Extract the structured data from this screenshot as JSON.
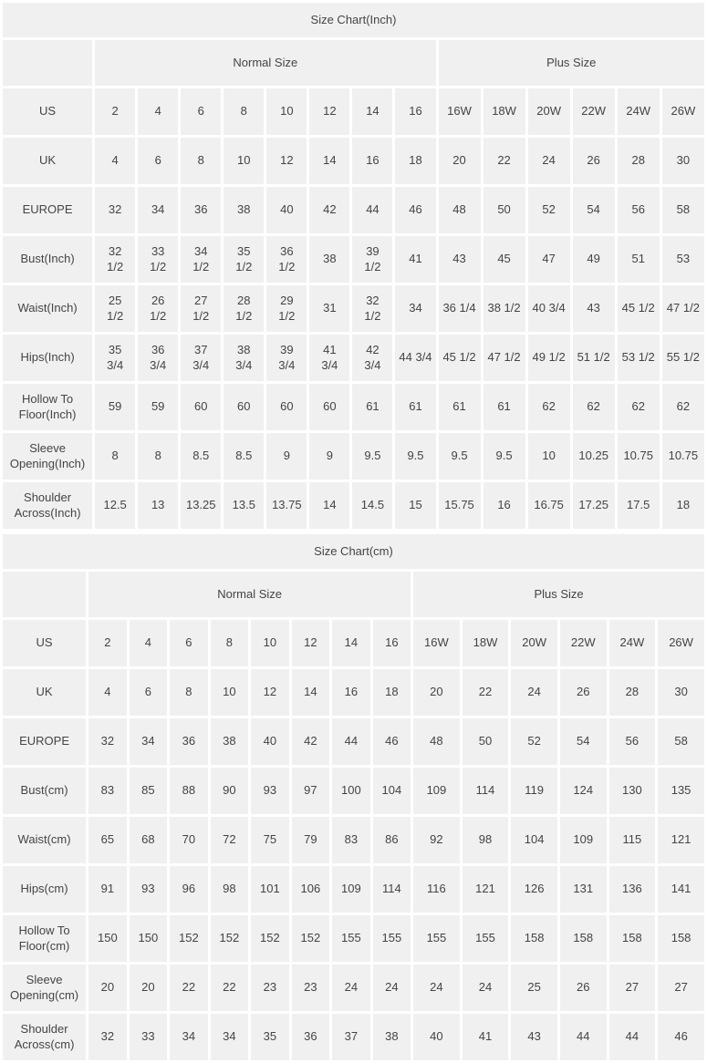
{
  "colors": {
    "cell_background": "#f0f0f0",
    "label_background": "#e4e4e4",
    "gap": "#ffffff",
    "text": "#444444",
    "title_text": "#333333"
  },
  "chart_data": [
    {
      "type": "table",
      "title": "Size Chart(Inch)",
      "column_groups": [
        {
          "label": "Normal Size",
          "span": 8
        },
        {
          "label": "Plus Size",
          "span": 6
        }
      ],
      "rows": [
        {
          "label": "US",
          "values": [
            "2",
            "4",
            "6",
            "8",
            "10",
            "12",
            "14",
            "16",
            "16W",
            "18W",
            "20W",
            "22W",
            "24W",
            "26W"
          ]
        },
        {
          "label": "UK",
          "values": [
            "4",
            "6",
            "8",
            "10",
            "12",
            "14",
            "16",
            "18",
            "20",
            "22",
            "24",
            "26",
            "28",
            "30"
          ]
        },
        {
          "label": "EUROPE",
          "values": [
            "32",
            "34",
            "36",
            "38",
            "40",
            "42",
            "44",
            "46",
            "48",
            "50",
            "52",
            "54",
            "56",
            "58"
          ]
        },
        {
          "label": "Bust(Inch)",
          "values": [
            "32 1/2",
            "33 1/2",
            "34 1/2",
            "35 1/2",
            "36 1/2",
            "38",
            "39 1/2",
            "41",
            "43",
            "45",
            "47",
            "49",
            "51",
            "53"
          ]
        },
        {
          "label": "Waist(Inch)",
          "values": [
            "25 1/2",
            "26 1/2",
            "27 1/2",
            "28 1/2",
            "29 1/2",
            "31",
            "32 1/2",
            "34",
            "36 1/4",
            "38 1/2",
            "40 3/4",
            "43",
            "45 1/2",
            "47 1/2"
          ]
        },
        {
          "label": "Hips(Inch)",
          "values": [
            "35 3/4",
            "36 3/4",
            "37 3/4",
            "38 3/4",
            "39 3/4",
            "41 3/4",
            "42 3/4",
            "44 3/4",
            "45 1/2",
            "47 1/2",
            "49 1/2",
            "51 1/2",
            "53 1/2",
            "55 1/2"
          ]
        },
        {
          "label": "Hollow To Floor(Inch)",
          "values": [
            "59",
            "59",
            "60",
            "60",
            "60",
            "60",
            "61",
            "61",
            "61",
            "61",
            "62",
            "62",
            "62",
            "62"
          ]
        },
        {
          "label": "Sleeve Opening(Inch)",
          "values": [
            "8",
            "8",
            "8.5",
            "8.5",
            "9",
            "9",
            "9.5",
            "9.5",
            "9.5",
            "9.5",
            "10",
            "10.25",
            "10.75",
            "10.75"
          ]
        },
        {
          "label": "Shoulder Across(Inch)",
          "values": [
            "12.5",
            "13",
            "13.25",
            "13.5",
            "13.75",
            "14",
            "14.5",
            "15",
            "15.75",
            "16",
            "16.75",
            "17.25",
            "17.5",
            "18"
          ]
        }
      ]
    },
    {
      "type": "table",
      "title": "Size Chart(cm)",
      "column_groups": [
        {
          "label": "Normal Size",
          "span": 8
        },
        {
          "label": "Plus Size",
          "span": 6
        }
      ],
      "rows": [
        {
          "label": "US",
          "values": [
            "2",
            "4",
            "6",
            "8",
            "10",
            "12",
            "14",
            "16",
            "16W",
            "18W",
            "20W",
            "22W",
            "24W",
            "26W"
          ]
        },
        {
          "label": "UK",
          "values": [
            "4",
            "6",
            "8",
            "10",
            "12",
            "14",
            "16",
            "18",
            "20",
            "22",
            "24",
            "26",
            "28",
            "30"
          ]
        },
        {
          "label": "EUROPE",
          "values": [
            "32",
            "34",
            "36",
            "38",
            "40",
            "42",
            "44",
            "46",
            "48",
            "50",
            "52",
            "54",
            "56",
            "58"
          ]
        },
        {
          "label": "Bust(cm)",
          "values": [
            "83",
            "85",
            "88",
            "90",
            "93",
            "97",
            "100",
            "104",
            "109",
            "114",
            "119",
            "124",
            "130",
            "135"
          ]
        },
        {
          "label": "Waist(cm)",
          "values": [
            "65",
            "68",
            "70",
            "72",
            "75",
            "79",
            "83",
            "86",
            "92",
            "98",
            "104",
            "109",
            "115",
            "121"
          ]
        },
        {
          "label": "Hips(cm)",
          "values": [
            "91",
            "93",
            "96",
            "98",
            "101",
            "106",
            "109",
            "114",
            "116",
            "121",
            "126",
            "131",
            "136",
            "141"
          ]
        },
        {
          "label": "Hollow To Floor(cm)",
          "values": [
            "150",
            "150",
            "152",
            "152",
            "152",
            "152",
            "155",
            "155",
            "155",
            "155",
            "158",
            "158",
            "158",
            "158"
          ]
        },
        {
          "label": "Sleeve Opening(cm)",
          "values": [
            "20",
            "20",
            "22",
            "22",
            "23",
            "23",
            "24",
            "24",
            "24",
            "24",
            "25",
            "26",
            "27",
            "27"
          ]
        },
        {
          "label": "Shoulder Across(cm)",
          "values": [
            "32",
            "33",
            "34",
            "34",
            "35",
            "36",
            "37",
            "38",
            "40",
            "41",
            "43",
            "44",
            "44",
            "46"
          ]
        }
      ]
    }
  ]
}
